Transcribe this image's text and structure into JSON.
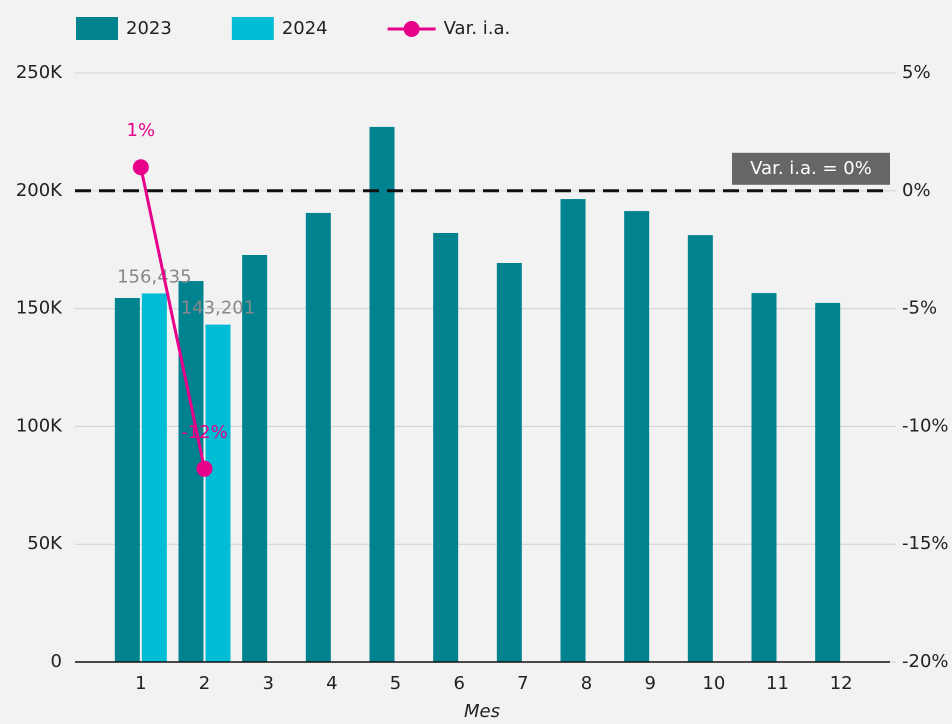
{
  "chart_data": {
    "type": "bar",
    "x_label": "Mes",
    "categories": [
      "1",
      "2",
      "3",
      "4",
      "5",
      "6",
      "7",
      "8",
      "9",
      "10",
      "11",
      "12"
    ],
    "series": [
      {
        "name": "2023",
        "color": "#00838f",
        "values": [
          154500,
          161700,
          172750,
          190600,
          227100,
          182100,
          169350,
          196500,
          191400,
          181200,
          156600,
          152400
        ]
      },
      {
        "name": "2024",
        "color": "#00bcd4",
        "values": [
          156435,
          143201,
          null,
          null,
          null,
          null,
          null,
          null,
          null,
          null,
          null,
          null
        ],
        "value_labels": [
          "156,435",
          "143,201",
          null,
          null,
          null,
          null,
          null,
          null,
          null,
          null,
          null,
          null
        ]
      },
      {
        "name": "Var. i.a.",
        "type": "line",
        "axis": "y2",
        "color": "#e6008a",
        "values": [
          1.0,
          -11.8,
          null,
          null,
          null,
          null,
          null,
          null,
          null,
          null,
          null,
          null
        ],
        "value_labels": [
          "1%",
          "-12%",
          null,
          null,
          null,
          null,
          null,
          null,
          null,
          null,
          null,
          null
        ]
      }
    ],
    "ylim": [
      0,
      250000
    ],
    "yticks": [
      0,
      {
        "value": 50000,
        "label": "50K"
      },
      {
        "value": 100000,
        "label": "100K"
      },
      {
        "value": 150000,
        "label": "150K"
      },
      {
        "value": 200000,
        "label": "200K"
      },
      {
        "value": 250000,
        "label": "250K"
      }
    ],
    "y2lim": [
      -20,
      5
    ],
    "y2ticks": [
      {
        "value": -20,
        "label": "-20%"
      },
      {
        "value": -15,
        "label": "-15%"
      },
      {
        "value": -10,
        "label": "-10%"
      },
      {
        "value": -5,
        "label": "-5%"
      },
      {
        "value": 0,
        "label": "0%"
      },
      {
        "value": 5,
        "label": "5%"
      }
    ],
    "reference_line": {
      "axis": "y2",
      "value": 0,
      "label": "Var. i.a. = 0%"
    },
    "grid": true,
    "legend": "top"
  }
}
